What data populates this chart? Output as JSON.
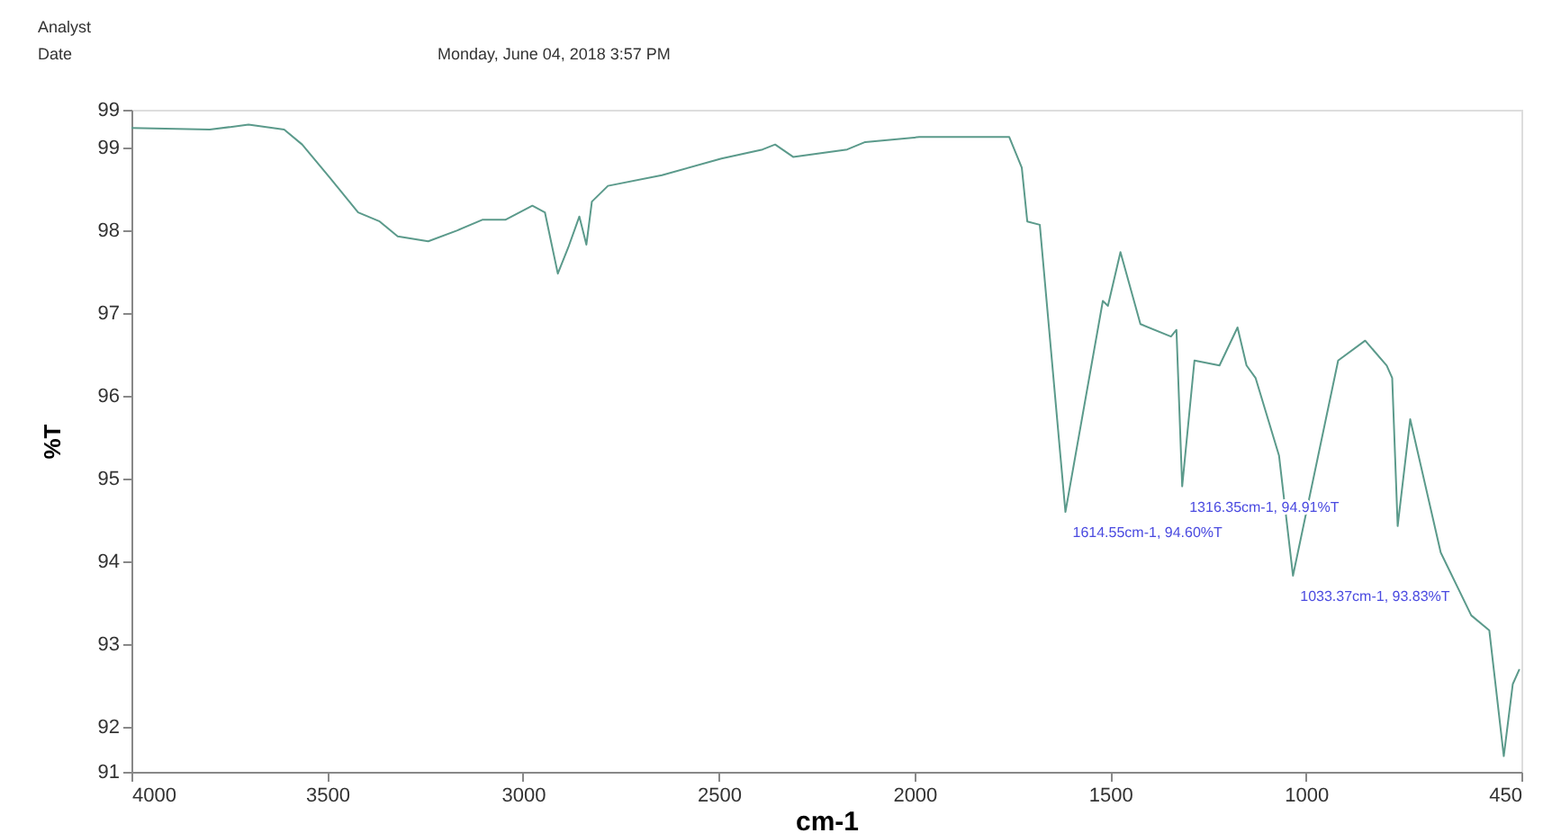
{
  "chart_data": {
    "type": "line",
    "xlabel": "cm-1",
    "ylabel": "%T",
    "color": "#5b9a8b",
    "grid": false,
    "marker": "none",
    "line_style": "solid",
    "xlim": [
      4000,
      450
    ],
    "xticks": [
      4000,
      3500,
      3000,
      2500,
      2000,
      1500,
      1000,
      450
    ],
    "ylim": [
      91.46,
      99.46
    ],
    "yticks": [
      {
        "value": 91.46,
        "label": "91"
      },
      92,
      93,
      94,
      95,
      96,
      97,
      98,
      99,
      {
        "value": 99.46,
        "label": "99"
      }
    ],
    "x": [
      4000,
      3800,
      3701,
      3610,
      3564,
      3495,
      3421,
      3366,
      3320,
      3242,
      3169,
      3104,
      3045,
      2976,
      2944,
      2911,
      2884,
      2856,
      2838,
      2824,
      2783,
      2645,
      2493,
      2388,
      2356,
      2310,
      2172,
      2126,
      1988,
      1758,
      1726,
      1712,
      1680,
      1614.55,
      1519,
      1506,
      1474,
      1423,
      1345,
      1331,
      1316.35,
      1285,
      1221,
      1175,
      1152,
      1129,
      1069,
      1033.37,
      918,
      849,
      794,
      780,
      766,
      734,
      656,
      578,
      532,
      495,
      472,
      455
    ],
    "values": [
      99.24,
      99.22,
      99.28,
      99.22,
      99.04,
      98.65,
      98.22,
      98.11,
      97.93,
      97.87,
      98.0,
      98.13,
      98.13,
      98.3,
      98.22,
      97.48,
      97.8,
      98.17,
      97.83,
      98.35,
      98.54,
      98.67,
      98.87,
      98.98,
      99.04,
      98.89,
      98.98,
      99.07,
      99.13,
      99.13,
      98.76,
      98.11,
      98.07,
      94.6,
      97.15,
      97.09,
      97.74,
      96.87,
      96.72,
      96.8,
      94.91,
      96.43,
      96.37,
      96.83,
      96.37,
      96.22,
      95.28,
      93.83,
      96.43,
      96.67,
      96.37,
      96.22,
      94.43,
      95.72,
      94.11,
      93.35,
      93.17,
      91.65,
      92.52,
      92.7
    ],
    "annotations": [
      "Analyst",
      "Date",
      "Monday, June 04, 2018 3:57 PM",
      {
        "text": "1614.55cm-1, 94.60%T",
        "x": 1614.55,
        "y": 94.6
      },
      {
        "text": "1316.35cm-1, 94.91%T",
        "x": 1316.35,
        "y": 94.91
      },
      {
        "text": "1033.37cm-1, 93.83%T",
        "x": 1033.37,
        "y": 93.83
      }
    ]
  }
}
